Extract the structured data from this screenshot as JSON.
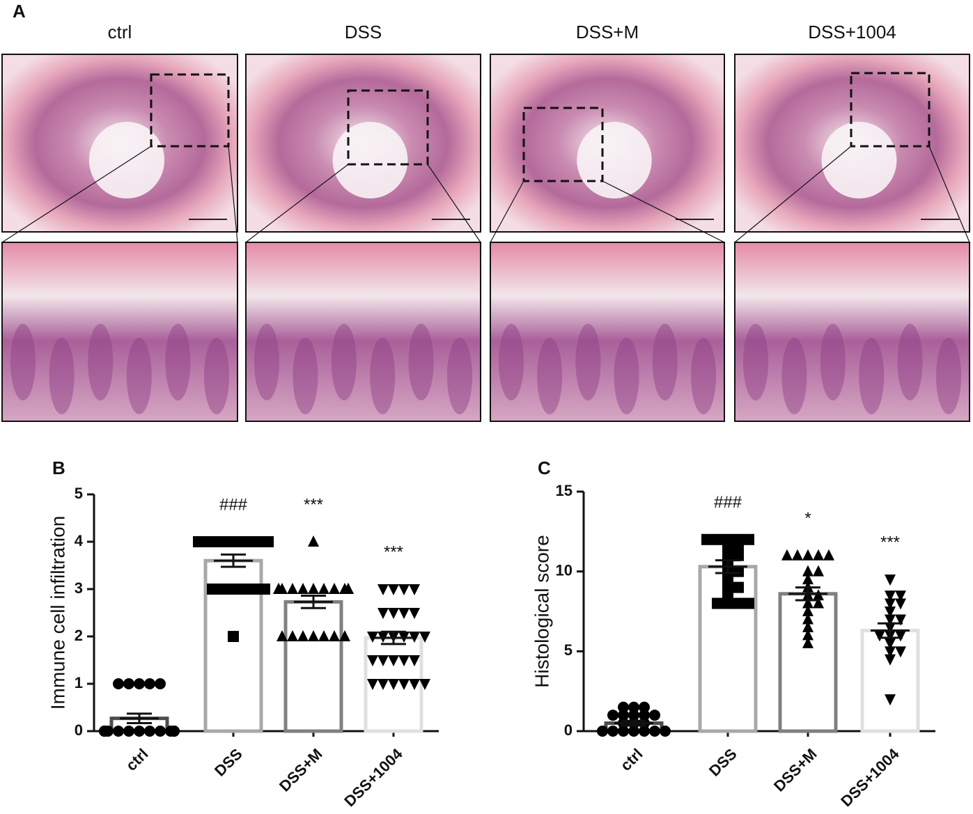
{
  "panel_a": {
    "label": "A",
    "columns": [
      "ctrl",
      "DSS",
      "DSS+M",
      "DSS+1004"
    ]
  },
  "chart_data": [
    {
      "type": "bar",
      "panel": "B",
      "ylabel": "Immune cell infiltration",
      "categories": [
        "ctrl",
        "DSS",
        "DSS+M",
        "DSS+1004"
      ],
      "values": [
        0.27,
        3.6,
        2.73,
        1.97
      ],
      "errors": [
        0.1,
        0.13,
        0.13,
        0.13
      ],
      "colors": [
        "#4d4d4d",
        "#a8a8a8",
        "#808080",
        "#e0e0e0"
      ],
      "markers": [
        "circle",
        "square",
        "triangle",
        "triangle-down"
      ],
      "annotations": [
        null,
        "###",
        "***",
        "***"
      ],
      "points": [
        [
          1,
          1,
          1,
          1,
          1,
          0,
          0,
          0,
          0,
          0,
          0,
          0,
          0,
          0,
          0,
          0,
          0,
          0
        ],
        [
          4,
          4,
          4,
          4,
          4,
          4,
          4,
          4,
          4,
          4,
          4,
          4,
          4,
          3,
          3,
          3,
          3,
          3,
          3,
          2
        ],
        [
          4,
          3,
          3,
          3,
          3,
          3,
          3,
          3,
          3,
          3,
          3,
          3,
          2,
          2,
          2,
          2,
          2,
          2,
          2
        ],
        [
          3,
          3,
          3,
          3,
          2.5,
          2.5,
          2.5,
          2.5,
          2,
          2,
          2,
          2,
          2,
          2,
          1.5,
          1.5,
          1.5,
          1.5,
          1.5,
          1,
          1,
          1,
          1,
          1,
          1
        ]
      ],
      "ylim": [
        0,
        5
      ],
      "yticks": [
        0,
        1,
        2,
        3,
        4,
        5
      ]
    },
    {
      "type": "bar",
      "panel": "C",
      "ylabel": "Histological score",
      "categories": [
        "ctrl",
        "DSS",
        "DSS+M",
        "DSS+1004"
      ],
      "values": [
        0.5,
        10.3,
        8.6,
        6.3
      ],
      "errors": [
        0.15,
        0.4,
        0.4,
        0.45
      ],
      "colors": [
        "#4d4d4d",
        "#a8a8a8",
        "#808080",
        "#e0e0e0"
      ],
      "markers": [
        "circle",
        "square",
        "triangle",
        "triangle-down"
      ],
      "annotations": [
        null,
        "###",
        "*",
        "***"
      ],
      "points": [
        [
          1.5,
          1.5,
          1.5,
          1,
          1,
          1,
          1,
          1,
          0.5,
          0.5,
          0.5,
          0,
          0,
          0,
          0,
          0,
          0,
          0
        ],
        [
          12,
          12,
          12,
          12,
          12,
          11.5,
          11.5,
          11,
          11,
          10.5,
          10,
          10,
          9.5,
          9,
          9,
          8.5,
          8,
          8,
          8,
          8
        ],
        [
          11,
          11,
          11,
          11,
          11,
          10,
          10,
          9.5,
          9,
          8.5,
          8.5,
          8,
          8,
          7.5,
          7,
          6.5,
          6,
          5.5
        ],
        [
          9.5,
          8.5,
          8.5,
          8,
          8,
          7.5,
          7,
          7,
          6.5,
          6,
          6,
          6,
          5.5,
          5,
          5,
          4.5,
          2
        ]
      ],
      "ylim": [
        0,
        15
      ],
      "yticks": [
        0,
        5,
        10,
        15
      ]
    }
  ]
}
